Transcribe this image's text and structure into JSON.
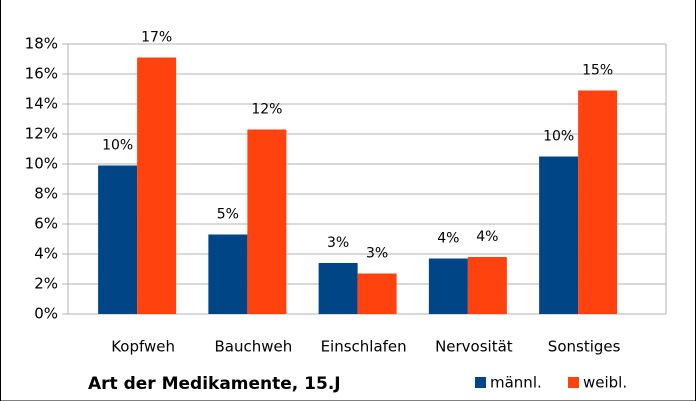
{
  "chart_data": {
    "type": "bar",
    "title": "Art der Medikamente, 15.J",
    "categories": [
      "Kopfweh",
      "Bauchweh",
      "Einschlafen",
      "Nervosität",
      "Sonstiges"
    ],
    "series": [
      {
        "name": "männl.",
        "color": "#004586",
        "values": [
          9.9,
          5.3,
          3.4,
          3.7,
          10.5
        ],
        "value_labels": [
          "10%",
          "5%",
          "3%",
          "4%",
          "10%"
        ]
      },
      {
        "name": "weibl.",
        "color": "#ff420e",
        "values": [
          17.1,
          12.3,
          2.7,
          3.8,
          14.9
        ],
        "value_labels": [
          "17%",
          "12%",
          "3%",
          "4%",
          "15%"
        ]
      }
    ],
    "ylim": [
      0,
      18
    ],
    "yticks": [
      {
        "value": 0,
        "label": "0%"
      },
      {
        "value": 2,
        "label": "2%"
      },
      {
        "value": 4,
        "label": "4%"
      },
      {
        "value": 6,
        "label": "6%"
      },
      {
        "value": 8,
        "label": "8%"
      },
      {
        "value": 10,
        "label": "10%"
      },
      {
        "value": 12,
        "label": "12%"
      },
      {
        "value": 14,
        "label": "14%"
      },
      {
        "value": 16,
        "label": "16%"
      },
      {
        "value": 18,
        "label": "18%"
      }
    ],
    "grid": true,
    "legend": "bottom-right"
  }
}
